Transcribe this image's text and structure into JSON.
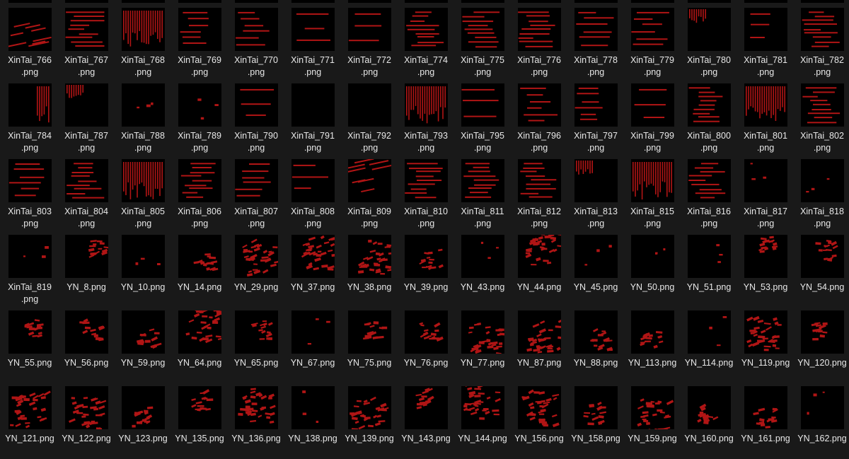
{
  "view": {
    "background": "#191919",
    "thumb_background": "#000000",
    "mark_color": "#b01515",
    "text_color": "#e8e8e8"
  },
  "files": [
    {
      "name": "XinTai_766",
      "ext": ".png",
      "pattern": "diag"
    },
    {
      "name": "XinTai_767",
      "ext": ".png",
      "pattern": "hdense"
    },
    {
      "name": "XinTai_768",
      "ext": ".png",
      "pattern": "vgrid"
    },
    {
      "name": "XinTai_769",
      "ext": ".png",
      "pattern": "hmid"
    },
    {
      "name": "XinTai_770",
      "ext": ".png",
      "pattern": "hmid"
    },
    {
      "name": "XinTai_771",
      "ext": ".png",
      "pattern": "hsparse"
    },
    {
      "name": "XinTai_772",
      "ext": ".png",
      "pattern": "hsparse"
    },
    {
      "name": "XinTai_774",
      "ext": ".png",
      "pattern": "hdense"
    },
    {
      "name": "XinTai_775",
      "ext": ".png",
      "pattern": "hdense"
    },
    {
      "name": "XinTai_776",
      "ext": ".png",
      "pattern": "hdense"
    },
    {
      "name": "XinTai_778",
      "ext": ".png",
      "pattern": "hmid"
    },
    {
      "name": "XinTai_779",
      "ext": ".png",
      "pattern": "hmid"
    },
    {
      "name": "XinTai_780",
      "ext": ".png",
      "pattern": "vcorner"
    },
    {
      "name": "XinTai_781",
      "ext": ".png",
      "pattern": "hsparse"
    },
    {
      "name": "XinTai_782",
      "ext": ".png",
      "pattern": "hdense"
    },
    {
      "name": "XinTai_784",
      "ext": ".png",
      "pattern": "vright"
    },
    {
      "name": "XinTai_787",
      "ext": ".png",
      "pattern": "vcorner"
    },
    {
      "name": "XinTai_788",
      "ext": ".png",
      "pattern": "dots"
    },
    {
      "name": "XinTai_789",
      "ext": ".png",
      "pattern": "dots"
    },
    {
      "name": "XinTai_790",
      "ext": ".png",
      "pattern": "hsparse"
    },
    {
      "name": "XinTai_791",
      "ext": ".png",
      "pattern": "empty"
    },
    {
      "name": "XinTai_792",
      "ext": ".png",
      "pattern": "empty"
    },
    {
      "name": "XinTai_793",
      "ext": ".png",
      "pattern": "vgrid"
    },
    {
      "name": "XinTai_795",
      "ext": ".png",
      "pattern": "hsparse"
    },
    {
      "name": "XinTai_796",
      "ext": ".png",
      "pattern": "hmid"
    },
    {
      "name": "XinTai_797",
      "ext": ".png",
      "pattern": "hmid"
    },
    {
      "name": "XinTai_799",
      "ext": ".png",
      "pattern": "hsparse"
    },
    {
      "name": "XinTai_800",
      "ext": ".png",
      "pattern": "hdense"
    },
    {
      "name": "XinTai_801",
      "ext": ".png",
      "pattern": "vgrid"
    },
    {
      "name": "XinTai_802",
      "ext": ".png",
      "pattern": "hdense"
    },
    {
      "name": "XinTai_803",
      "ext": ".png",
      "pattern": "hmid"
    },
    {
      "name": "XinTai_804",
      "ext": ".png",
      "pattern": "hdense"
    },
    {
      "name": "XinTai_805",
      "ext": ".png",
      "pattern": "vgrid"
    },
    {
      "name": "XinTai_806",
      "ext": ".png",
      "pattern": "hdense"
    },
    {
      "name": "XinTai_807",
      "ext": ".png",
      "pattern": "hmid"
    },
    {
      "name": "XinTai_808",
      "ext": ".png",
      "pattern": "hsparse"
    },
    {
      "name": "XinTai_809",
      "ext": ".png",
      "pattern": "diag"
    },
    {
      "name": "XinTai_810",
      "ext": ".png",
      "pattern": "hdense"
    },
    {
      "name": "XinTai_811",
      "ext": ".png",
      "pattern": "hdense"
    },
    {
      "name": "XinTai_812",
      "ext": ".png",
      "pattern": "hdense"
    },
    {
      "name": "XinTai_813",
      "ext": ".png",
      "pattern": "vcorner"
    },
    {
      "name": "XinTai_815",
      "ext": ".png",
      "pattern": "vgrid"
    },
    {
      "name": "XinTai_816",
      "ext": ".png",
      "pattern": "hdense"
    },
    {
      "name": "XinTai_817",
      "ext": ".png",
      "pattern": "dots"
    },
    {
      "name": "XinTai_818",
      "ext": ".png",
      "pattern": "dots"
    },
    {
      "name": "XinTai_819",
      "ext": ".png",
      "pattern": "dots"
    },
    {
      "name": "YN_8",
      "ext": ".png",
      "pattern": "blob"
    },
    {
      "name": "YN_10",
      "ext": ".png",
      "pattern": "dots"
    },
    {
      "name": "YN_14",
      "ext": ".png",
      "pattern": "blob"
    },
    {
      "name": "YN_29",
      "ext": ".png",
      "pattern": "blobbig"
    },
    {
      "name": "YN_37",
      "ext": ".png",
      "pattern": "blobbig"
    },
    {
      "name": "YN_38",
      "ext": ".png",
      "pattern": "blobbig"
    },
    {
      "name": "YN_39",
      "ext": ".png",
      "pattern": "blob"
    },
    {
      "name": "YN_43",
      "ext": ".png",
      "pattern": "dots"
    },
    {
      "name": "YN_44",
      "ext": ".png",
      "pattern": "blobbig"
    },
    {
      "name": "YN_45",
      "ext": ".png",
      "pattern": "dots"
    },
    {
      "name": "YN_50",
      "ext": ".png",
      "pattern": "dots"
    },
    {
      "name": "YN_51",
      "ext": ".png",
      "pattern": "dots"
    },
    {
      "name": "YN_53",
      "ext": ".png",
      "pattern": "blob"
    },
    {
      "name": "YN_54",
      "ext": ".png",
      "pattern": "blob"
    },
    {
      "name": "YN_55",
      "ext": ".png",
      "pattern": "blob"
    },
    {
      "name": "YN_56",
      "ext": ".png",
      "pattern": "blob"
    },
    {
      "name": "YN_59",
      "ext": ".png",
      "pattern": "blob"
    },
    {
      "name": "YN_64",
      "ext": ".png",
      "pattern": "blobbig"
    },
    {
      "name": "YN_65",
      "ext": ".png",
      "pattern": "blob"
    },
    {
      "name": "YN_67",
      "ext": ".png",
      "pattern": "dots"
    },
    {
      "name": "YN_75",
      "ext": ".png",
      "pattern": "blob"
    },
    {
      "name": "YN_76",
      "ext": ".png",
      "pattern": "blob"
    },
    {
      "name": "YN_77",
      "ext": ".png",
      "pattern": "blobbig"
    },
    {
      "name": "YN_87",
      "ext": ".png",
      "pattern": "blobbig"
    },
    {
      "name": "YN_88",
      "ext": ".png",
      "pattern": "blob"
    },
    {
      "name": "YN_113",
      "ext": ".png",
      "pattern": "blob"
    },
    {
      "name": "YN_114",
      "ext": ".png",
      "pattern": "dots"
    },
    {
      "name": "YN_119",
      "ext": ".png",
      "pattern": "blobbig"
    },
    {
      "name": "YN_120",
      "ext": ".png",
      "pattern": "blob"
    },
    {
      "name": "YN_121",
      "ext": ".png",
      "pattern": "blobbig"
    },
    {
      "name": "YN_122",
      "ext": ".png",
      "pattern": "blobbig"
    },
    {
      "name": "YN_123",
      "ext": ".png",
      "pattern": "blob"
    },
    {
      "name": "YN_135",
      "ext": ".png",
      "pattern": "blob"
    },
    {
      "name": "YN_136",
      "ext": ".png",
      "pattern": "blobbig"
    },
    {
      "name": "YN_138",
      "ext": ".png",
      "pattern": "dots"
    },
    {
      "name": "YN_139",
      "ext": ".png",
      "pattern": "blobbig"
    },
    {
      "name": "YN_143",
      "ext": ".png",
      "pattern": "blob"
    },
    {
      "name": "YN_144",
      "ext": ".png",
      "pattern": "blobbig"
    },
    {
      "name": "YN_156",
      "ext": ".png",
      "pattern": "blobbig"
    },
    {
      "name": "YN_158",
      "ext": ".png",
      "pattern": "blob"
    },
    {
      "name": "YN_159",
      "ext": ".png",
      "pattern": "blobbig"
    },
    {
      "name": "YN_160",
      "ext": ".png",
      "pattern": "blob"
    },
    {
      "name": "YN_161",
      "ext": ".png",
      "pattern": "blob"
    },
    {
      "name": "YN_162",
      "ext": ".png",
      "pattern": "dots"
    }
  ]
}
